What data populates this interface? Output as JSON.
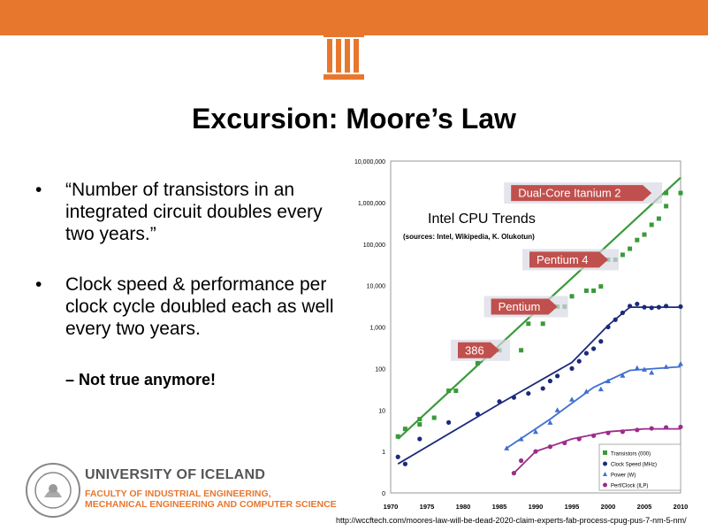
{
  "title": "Excursion: Moore’s Law",
  "bullets": [
    {
      "mark": "•",
      "text": "“Number of transistors in an integrated circuit doubles every two years.”"
    },
    {
      "mark": "•",
      "text": "Clock speed & performance per clock cycle doubled each as well every two years."
    }
  ],
  "sub_bullet": "– Not true anymore!",
  "footer": {
    "university": "UNIVERSITY OF ICELAND",
    "faculty_line1": "FACULTY OF INDUSTRIAL ENGINEERING,",
    "faculty_line2": "MECHANICAL ENGINEERING AND COMPUTER SCIENCE"
  },
  "source_url": "http://wccftech.com/moores-law-will-be-dead-2020-claim-experts-fab-process-cpug-pus-7-nm-5-nm/",
  "colors": {
    "accent": "#e8772e",
    "transistors": "#3a9a3a",
    "clock": "#1c2a7a",
    "power": "#3f6fd0",
    "perf": "#9c2c8a"
  },
  "chart_data": {
    "type": "scatter",
    "title": "Intel CPU Trends",
    "subtitle": "(sources: Intel, Wikipedia, K. Olukotun)",
    "x_ticks": [
      "1970",
      "1975",
      "1980",
      "1985",
      "1990",
      "1995",
      "2000",
      "2005",
      "2010"
    ],
    "y_ticks": [
      "0",
      "1",
      "10",
      "100",
      "1,000",
      "10,000",
      "100,000",
      "1,000,000",
      "10,000,000"
    ],
    "xlim": [
      1970,
      2010
    ],
    "y_scale": "log",
    "annotations": [
      {
        "label": "Dual-Core Itanium 2",
        "x": 2006,
        "y": 1700000,
        "color": "#c0504d"
      },
      {
        "label": "Pentium 4",
        "x": 2000,
        "y": 42000,
        "color": "#c0504d"
      },
      {
        "label": "Pentium",
        "x": 1993,
        "y": 3100,
        "color": "#c0504d"
      },
      {
        "label": "386",
        "x": 1985,
        "y": 275,
        "color": "#c0504d"
      }
    ],
    "legend": [
      "Transistors (000)",
      "Clock Speed (MHz)",
      "Power (W)",
      "Perf/Clock (ILP)"
    ],
    "legend_position": "bottom-right",
    "series": [
      {
        "name": "Transistors (000)",
        "marker": "square",
        "points": [
          [
            1971,
            2.3
          ],
          [
            1972,
            3.5
          ],
          [
            1974,
            4.5
          ],
          [
            1974,
            6
          ],
          [
            1976,
            6.5
          ],
          [
            1978,
            29
          ],
          [
            1979,
            29
          ],
          [
            1982,
            134
          ],
          [
            1985,
            275
          ],
          [
            1988,
            275
          ],
          [
            1989,
            1200
          ],
          [
            1991,
            1200
          ],
          [
            1993,
            3100
          ],
          [
            1994,
            3100
          ],
          [
            1995,
            5500
          ],
          [
            1997,
            7500
          ],
          [
            1998,
            7500
          ],
          [
            1999,
            9500
          ],
          [
            2000,
            42000
          ],
          [
            2001,
            42000
          ],
          [
            2002,
            55000
          ],
          [
            2003,
            77000
          ],
          [
            2004,
            125000
          ],
          [
            2005,
            169000
          ],
          [
            2006,
            291000
          ],
          [
            2007,
            410000
          ],
          [
            2008,
            820000
          ],
          [
            2008,
            1700000
          ],
          [
            2010,
            1700000
          ]
        ],
        "trend": [
          [
            1971,
            2
          ],
          [
            2010,
            4000000
          ]
        ]
      },
      {
        "name": "Clock Speed (MHz)",
        "marker": "circle",
        "points": [
          [
            1971,
            0.74
          ],
          [
            1972,
            0.5
          ],
          [
            1974,
            2
          ],
          [
            1978,
            5
          ],
          [
            1982,
            8
          ],
          [
            1985,
            16
          ],
          [
            1987,
            20
          ],
          [
            1989,
            25
          ],
          [
            1991,
            33
          ],
          [
            1992,
            50
          ],
          [
            1993,
            66
          ],
          [
            1995,
            100
          ],
          [
            1996,
            150
          ],
          [
            1997,
            233
          ],
          [
            1998,
            300
          ],
          [
            1999,
            450
          ],
          [
            2000,
            1000
          ],
          [
            2001,
            1500
          ],
          [
            2002,
            2200
          ],
          [
            2003,
            3200
          ],
          [
            2004,
            3600
          ],
          [
            2005,
            3000
          ],
          [
            2006,
            2900
          ],
          [
            2007,
            3000
          ],
          [
            2008,
            3200
          ],
          [
            2010,
            3100
          ]
        ],
        "trend": [
          [
            1971,
            0.5
          ],
          [
            1985,
            14
          ],
          [
            1995,
            140
          ],
          [
            2000,
            1100
          ],
          [
            2003,
            3000
          ],
          [
            2010,
            3000
          ]
        ]
      },
      {
        "name": "Power (W)",
        "marker": "triangle",
        "points": [
          [
            1986,
            1.2
          ],
          [
            1988,
            2
          ],
          [
            1990,
            3
          ],
          [
            1992,
            5
          ],
          [
            1993,
            10
          ],
          [
            1995,
            18
          ],
          [
            1997,
            28
          ],
          [
            1999,
            32
          ],
          [
            2000,
            50
          ],
          [
            2002,
            68
          ],
          [
            2004,
            103
          ],
          [
            2005,
            95
          ],
          [
            2006,
            80
          ],
          [
            2008,
            110
          ],
          [
            2010,
            130
          ]
        ],
        "trend": [
          [
            1986,
            1.2
          ],
          [
            1992,
            6
          ],
          [
            1998,
            35
          ],
          [
            2003,
            90
          ],
          [
            2010,
            110
          ]
        ]
      },
      {
        "name": "Perf/Clock (ILP)",
        "marker": "circle",
        "points": [
          [
            1987,
            0.3
          ],
          [
            1988,
            0.6
          ],
          [
            1990,
            1
          ],
          [
            1992,
            1.3
          ],
          [
            1994,
            1.6
          ],
          [
            1996,
            2
          ],
          [
            1998,
            2.4
          ],
          [
            2000,
            2.8
          ],
          [
            2002,
            3
          ],
          [
            2004,
            3.3
          ],
          [
            2006,
            3.6
          ],
          [
            2008,
            3.8
          ],
          [
            2010,
            3.9
          ]
        ],
        "trend": [
          [
            1987,
            0.3
          ],
          [
            1990,
            1
          ],
          [
            1995,
            2
          ],
          [
            2000,
            3
          ],
          [
            2005,
            3.5
          ],
          [
            2010,
            3.5
          ]
        ]
      }
    ]
  }
}
